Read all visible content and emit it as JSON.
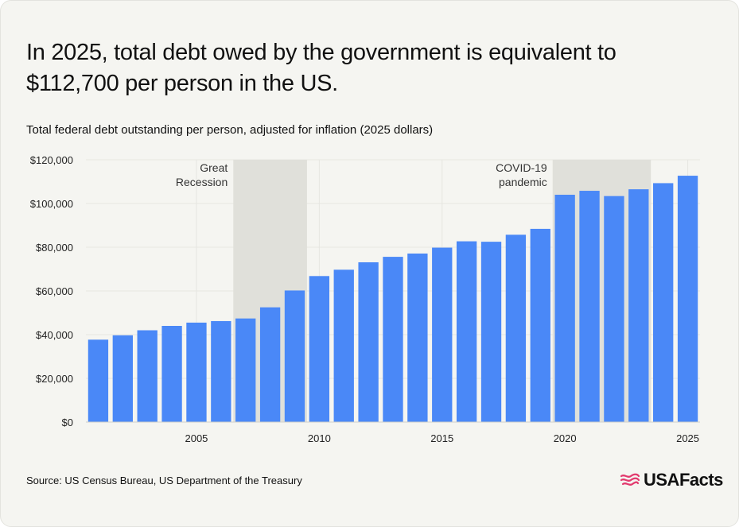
{
  "title": "In 2025, total debt owed by the government is equivalent to $112,700 per person in the US.",
  "subtitle": "Total federal debt outstanding per person, adjusted for inflation (2025 dollars)",
  "source": "Source: US Census Bureau, US Department of the Treasury",
  "logo": {
    "text": "USAFacts",
    "icon": "usa-flag-icon"
  },
  "colors": {
    "bar": "#4a88f7",
    "shade": "#e0e0da",
    "grid": "#e6e6e1",
    "text": "#111111",
    "logo_flag": "#e23a6e"
  },
  "chart_data": {
    "type": "bar",
    "title": "",
    "xlabel": "",
    "ylabel": "",
    "categories": [
      2001,
      2002,
      2003,
      2004,
      2005,
      2006,
      2007,
      2008,
      2009,
      2010,
      2011,
      2012,
      2013,
      2014,
      2015,
      2016,
      2017,
      2018,
      2019,
      2020,
      2021,
      2022,
      2023,
      2024,
      2025
    ],
    "values": [
      37700,
      39700,
      42000,
      44000,
      45500,
      46200,
      47400,
      52500,
      60200,
      66800,
      69700,
      73100,
      75600,
      77100,
      79800,
      82700,
      82500,
      85700,
      88400,
      104000,
      105800,
      103400,
      106500,
      109300,
      112700
    ],
    "ylim": [
      0,
      120000
    ],
    "yticks": [
      0,
      20000,
      40000,
      60000,
      80000,
      100000,
      120000
    ],
    "ytick_labels": [
      "$0",
      "$20,000",
      "$40,000",
      "$60,000",
      "$80,000",
      "$100,000",
      "$120,000"
    ],
    "xticks": [
      2005,
      2010,
      2015,
      2020,
      2025
    ],
    "xtick_labels": [
      "2005",
      "2010",
      "2015",
      "2020",
      "2025"
    ],
    "grid": true,
    "annotations": [
      {
        "label_lines": [
          "Great",
          "Recession"
        ],
        "start": 2007,
        "end": 2009
      },
      {
        "label_lines": [
          "COVID-19",
          "pandemic"
        ],
        "start": 2020,
        "end": 2023
      }
    ]
  }
}
